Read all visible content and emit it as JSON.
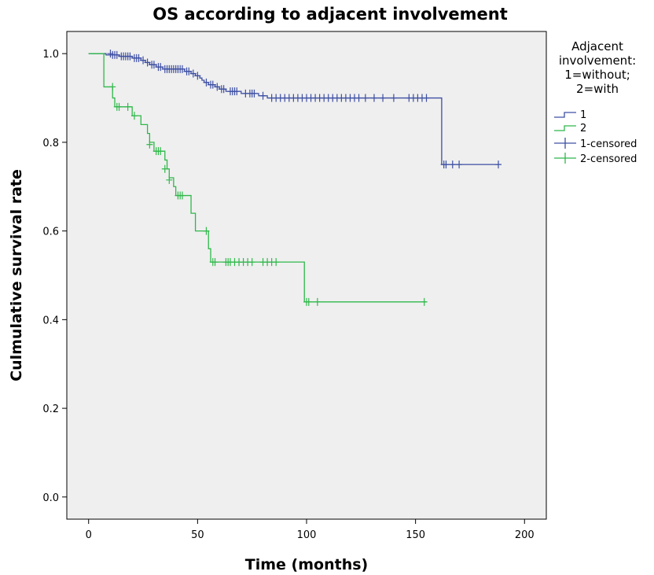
{
  "chart_data": {
    "type": "line",
    "title": "OS according to adjacent involvement",
    "xlabel": "Time (months)",
    "ylabel": "Culmulative survival rate",
    "xlim": [
      -10,
      210
    ],
    "ylim": [
      -0.05,
      1.05
    ],
    "xticks": [
      0,
      50,
      100,
      150,
      200
    ],
    "yticks": [
      0.0,
      0.2,
      0.4,
      0.6,
      0.8,
      1.0
    ],
    "xtick_labels": [
      "0",
      "50",
      "100",
      "150",
      "200"
    ],
    "ytick_labels": [
      "0.0",
      "0.2",
      "0.4",
      "0.6",
      "0.8",
      "1.0"
    ],
    "grid": false,
    "legend": {
      "position": "right",
      "title_lines": [
        "Adjacent",
        "involvement:",
        "1=without;",
        "2=with"
      ],
      "entries": [
        "1",
        "2",
        "1-censored",
        "2-censored"
      ]
    },
    "series": [
      {
        "name": "1",
        "color": "#3d4fa3",
        "steps": [
          [
            0,
            1.0
          ],
          [
            8,
            1.0
          ],
          [
            8,
            0.997
          ],
          [
            14,
            0.994
          ],
          [
            20,
            0.99
          ],
          [
            24,
            0.985
          ],
          [
            26,
            0.98
          ],
          [
            28,
            0.975
          ],
          [
            31,
            0.97
          ],
          [
            34,
            0.965
          ],
          [
            44,
            0.96
          ],
          [
            47,
            0.955
          ],
          [
            49,
            0.95
          ],
          [
            51,
            0.945
          ],
          [
            52,
            0.94
          ],
          [
            53,
            0.935
          ],
          [
            55,
            0.93
          ],
          [
            58,
            0.925
          ],
          [
            60,
            0.92
          ],
          [
            63,
            0.915
          ],
          [
            70,
            0.91
          ],
          [
            78,
            0.905
          ],
          [
            82,
            0.9
          ],
          [
            162,
            0.9
          ],
          [
            162,
            0.75
          ],
          [
            188,
            0.75
          ]
        ],
        "censored": [
          [
            10,
            1.0
          ],
          [
            11,
            0.997
          ],
          [
            12,
            0.997
          ],
          [
            13,
            0.997
          ],
          [
            15,
            0.994
          ],
          [
            16,
            0.994
          ],
          [
            17,
            0.994
          ],
          [
            18,
            0.994
          ],
          [
            19,
            0.994
          ],
          [
            21,
            0.99
          ],
          [
            22,
            0.99
          ],
          [
            23,
            0.99
          ],
          [
            25,
            0.985
          ],
          [
            27,
            0.98
          ],
          [
            29,
            0.975
          ],
          [
            30,
            0.975
          ],
          [
            32,
            0.97
          ],
          [
            33,
            0.97
          ],
          [
            35,
            0.965
          ],
          [
            36,
            0.965
          ],
          [
            37,
            0.965
          ],
          [
            38,
            0.965
          ],
          [
            39,
            0.965
          ],
          [
            40,
            0.965
          ],
          [
            41,
            0.965
          ],
          [
            42,
            0.965
          ],
          [
            43,
            0.965
          ],
          [
            45,
            0.96
          ],
          [
            46,
            0.96
          ],
          [
            48,
            0.955
          ],
          [
            50,
            0.95
          ],
          [
            54,
            0.935
          ],
          [
            56,
            0.93
          ],
          [
            57,
            0.93
          ],
          [
            59,
            0.925
          ],
          [
            61,
            0.92
          ],
          [
            62,
            0.92
          ],
          [
            65,
            0.915
          ],
          [
            66,
            0.915
          ],
          [
            67,
            0.915
          ],
          [
            68,
            0.915
          ],
          [
            72,
            0.91
          ],
          [
            74,
            0.91
          ],
          [
            75,
            0.91
          ],
          [
            76,
            0.91
          ],
          [
            80,
            0.905
          ],
          [
            84,
            0.9
          ],
          [
            86,
            0.9
          ],
          [
            88,
            0.9
          ],
          [
            90,
            0.9
          ],
          [
            92,
            0.9
          ],
          [
            94,
            0.9
          ],
          [
            96,
            0.9
          ],
          [
            98,
            0.9
          ],
          [
            100,
            0.9
          ],
          [
            102,
            0.9
          ],
          [
            104,
            0.9
          ],
          [
            106,
            0.9
          ],
          [
            108,
            0.9
          ],
          [
            110,
            0.9
          ],
          [
            112,
            0.9
          ],
          [
            114,
            0.9
          ],
          [
            116,
            0.9
          ],
          [
            118,
            0.9
          ],
          [
            120,
            0.9
          ],
          [
            122,
            0.9
          ],
          [
            124,
            0.9
          ],
          [
            127,
            0.9
          ],
          [
            131,
            0.9
          ],
          [
            135,
            0.9
          ],
          [
            140,
            0.9
          ],
          [
            147,
            0.9
          ],
          [
            149,
            0.9
          ],
          [
            151,
            0.9
          ],
          [
            153,
            0.9
          ],
          [
            155,
            0.9
          ],
          [
            163,
            0.75
          ],
          [
            164,
            0.75
          ],
          [
            167,
            0.75
          ],
          [
            170,
            0.75
          ],
          [
            188,
            0.75
          ]
        ]
      },
      {
        "name": "2",
        "color": "#2fb84a",
        "steps": [
          [
            0,
            1.0
          ],
          [
            7,
            1.0
          ],
          [
            7,
            0.925
          ],
          [
            11,
            0.925
          ],
          [
            11,
            0.9
          ],
          [
            12,
            0.9
          ],
          [
            12,
            0.88
          ],
          [
            20,
            0.88
          ],
          [
            20,
            0.86
          ],
          [
            24,
            0.86
          ],
          [
            24,
            0.84
          ],
          [
            27,
            0.84
          ],
          [
            27,
            0.82
          ],
          [
            28,
            0.82
          ],
          [
            28,
            0.8
          ],
          [
            30,
            0.8
          ],
          [
            30,
            0.78
          ],
          [
            35,
            0.78
          ],
          [
            35,
            0.76
          ],
          [
            36,
            0.76
          ],
          [
            36,
            0.74
          ],
          [
            37,
            0.74
          ],
          [
            37,
            0.72
          ],
          [
            39,
            0.72
          ],
          [
            39,
            0.7
          ],
          [
            40,
            0.7
          ],
          [
            40,
            0.68
          ],
          [
            47,
            0.68
          ],
          [
            47,
            0.64
          ],
          [
            49,
            0.64
          ],
          [
            49,
            0.6
          ],
          [
            55,
            0.6
          ],
          [
            55,
            0.56
          ],
          [
            56,
            0.56
          ],
          [
            56,
            0.53
          ],
          [
            99,
            0.53
          ],
          [
            99,
            0.44
          ],
          [
            155,
            0.44
          ]
        ],
        "censored": [
          [
            11,
            0.925
          ],
          [
            13,
            0.88
          ],
          [
            14,
            0.88
          ],
          [
            18,
            0.88
          ],
          [
            21,
            0.86
          ],
          [
            28,
            0.795
          ],
          [
            31,
            0.78
          ],
          [
            32,
            0.78
          ],
          [
            33,
            0.78
          ],
          [
            35,
            0.74
          ],
          [
            37,
            0.715
          ],
          [
            41,
            0.68
          ],
          [
            42,
            0.68
          ],
          [
            43,
            0.68
          ],
          [
            54,
            0.6
          ],
          [
            57,
            0.53
          ],
          [
            58,
            0.53
          ],
          [
            63,
            0.53
          ],
          [
            64,
            0.53
          ],
          [
            65,
            0.53
          ],
          [
            67,
            0.53
          ],
          [
            69,
            0.53
          ],
          [
            71,
            0.53
          ],
          [
            73,
            0.53
          ],
          [
            75,
            0.53
          ],
          [
            80,
            0.53
          ],
          [
            82,
            0.53
          ],
          [
            84,
            0.53
          ],
          [
            86,
            0.53
          ],
          [
            100,
            0.44
          ],
          [
            101,
            0.44
          ],
          [
            105,
            0.44
          ],
          [
            154,
            0.44
          ]
        ]
      }
    ]
  }
}
